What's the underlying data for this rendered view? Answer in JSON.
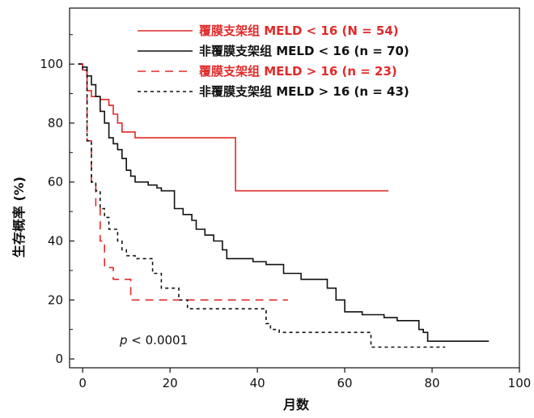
{
  "chart_data": {
    "type": "line",
    "title": "",
    "xlabel": "月数",
    "ylabel": "生存概率 (%)",
    "xlim": [
      -3,
      100
    ],
    "ylim": [
      -3,
      119
    ],
    "x_ticks": [
      "0",
      "20",
      "40",
      "60",
      "80",
      "100"
    ],
    "y_ticks": [
      "0",
      "20",
      "40",
      "60",
      "80",
      "100"
    ],
    "legend_position": "top",
    "annotation": {
      "italic": "p",
      "text": " < 0.0001"
    },
    "series": [
      {
        "name": "覆膜支架组 MELD < 16 (N = 54)",
        "color": "#e02a2a",
        "dash": "solid",
        "points": [
          [
            -1,
            100
          ],
          [
            0,
            100
          ],
          [
            0,
            98
          ],
          [
            1,
            98
          ],
          [
            1,
            91
          ],
          [
            2,
            91
          ],
          [
            2,
            89
          ],
          [
            4,
            89
          ],
          [
            4,
            88
          ],
          [
            6,
            88
          ],
          [
            6,
            86
          ],
          [
            7,
            86
          ],
          [
            7,
            83
          ],
          [
            8,
            83
          ],
          [
            8,
            80
          ],
          [
            9,
            80
          ],
          [
            9,
            77
          ],
          [
            10,
            77
          ],
          [
            10,
            77
          ],
          [
            12,
            77
          ],
          [
            12,
            75
          ],
          [
            35,
            75
          ],
          [
            35,
            57
          ],
          [
            70,
            57
          ]
        ]
      },
      {
        "name": "非覆膜支架组 MELD < 16 (n = 70)",
        "color": "#111111",
        "dash": "solid",
        "points": [
          [
            -1,
            100
          ],
          [
            0,
            100
          ],
          [
            0,
            99
          ],
          [
            1,
            99
          ],
          [
            1,
            96
          ],
          [
            2,
            96
          ],
          [
            2,
            93
          ],
          [
            3,
            93
          ],
          [
            3,
            89
          ],
          [
            4,
            89
          ],
          [
            4,
            84
          ],
          [
            5,
            84
          ],
          [
            5,
            80
          ],
          [
            6,
            80
          ],
          [
            6,
            75
          ],
          [
            7,
            75
          ],
          [
            7,
            73
          ],
          [
            8,
            73
          ],
          [
            8,
            71
          ],
          [
            9,
            71
          ],
          [
            9,
            68
          ],
          [
            10,
            68
          ],
          [
            10,
            64
          ],
          [
            11,
            64
          ],
          [
            11,
            62
          ],
          [
            12,
            62
          ],
          [
            12,
            60
          ],
          [
            15,
            60
          ],
          [
            15,
            59
          ],
          [
            17,
            59
          ],
          [
            17,
            58
          ],
          [
            18,
            58
          ],
          [
            18,
            57
          ],
          [
            21,
            57
          ],
          [
            21,
            51
          ],
          [
            23,
            51
          ],
          [
            23,
            49
          ],
          [
            25,
            49
          ],
          [
            25,
            47
          ],
          [
            26,
            47
          ],
          [
            26,
            44
          ],
          [
            28,
            44
          ],
          [
            28,
            42
          ],
          [
            30,
            42
          ],
          [
            30,
            40
          ],
          [
            32,
            40
          ],
          [
            32,
            37
          ],
          [
            33,
            37
          ],
          [
            33,
            34
          ],
          [
            39,
            34
          ],
          [
            39,
            33
          ],
          [
            42,
            33
          ],
          [
            42,
            32
          ],
          [
            46,
            32
          ],
          [
            46,
            29
          ],
          [
            50,
            29
          ],
          [
            50,
            27
          ],
          [
            56,
            27
          ],
          [
            56,
            24
          ],
          [
            58,
            24
          ],
          [
            58,
            20
          ],
          [
            60,
            20
          ],
          [
            60,
            16
          ],
          [
            64,
            16
          ],
          [
            64,
            15
          ],
          [
            69,
            15
          ],
          [
            69,
            14
          ],
          [
            72,
            14
          ],
          [
            72,
            13
          ],
          [
            77,
            13
          ],
          [
            77,
            10
          ],
          [
            78,
            10
          ],
          [
            78,
            9
          ],
          [
            79,
            9
          ],
          [
            79,
            6
          ],
          [
            93,
            6
          ]
        ]
      },
      {
        "name": "覆膜支架组 MELD > 16 (n = 23)",
        "color": "#e02a2a",
        "dash": "10,7",
        "points": [
          [
            -1,
            100
          ],
          [
            0,
            100
          ],
          [
            0,
            98
          ],
          [
            1,
            98
          ],
          [
            1,
            74
          ],
          [
            2,
            74
          ],
          [
            2,
            59
          ],
          [
            3,
            59
          ],
          [
            3,
            52
          ],
          [
            4,
            52
          ],
          [
            4,
            40
          ],
          [
            5,
            40
          ],
          [
            5,
            31
          ],
          [
            7,
            31
          ],
          [
            7,
            27
          ],
          [
            11,
            27
          ],
          [
            11,
            20
          ],
          [
            47,
            20
          ]
        ]
      },
      {
        "name": "非覆膜支架组 MELD > 16 (n = 43)",
        "color": "#111111",
        "dash": "4,4",
        "points": [
          [
            -1,
            100
          ],
          [
            0,
            100
          ],
          [
            0,
            98
          ],
          [
            1,
            98
          ],
          [
            1,
            74
          ],
          [
            2,
            74
          ],
          [
            2,
            60
          ],
          [
            3,
            60
          ],
          [
            3,
            57
          ],
          [
            4,
            57
          ],
          [
            4,
            51
          ],
          [
            5,
            51
          ],
          [
            5,
            48
          ],
          [
            6,
            48
          ],
          [
            6,
            44
          ],
          [
            8,
            44
          ],
          [
            8,
            40
          ],
          [
            9,
            40
          ],
          [
            9,
            37
          ],
          [
            10,
            37
          ],
          [
            10,
            35
          ],
          [
            12,
            35
          ],
          [
            12,
            34
          ],
          [
            16,
            34
          ],
          [
            16,
            29
          ],
          [
            18,
            29
          ],
          [
            18,
            24
          ],
          [
            22,
            24
          ],
          [
            22,
            20
          ],
          [
            24,
            20
          ],
          [
            24,
            17
          ],
          [
            42,
            17
          ],
          [
            42,
            12
          ],
          [
            43,
            12
          ],
          [
            43,
            10
          ],
          [
            45,
            10
          ],
          [
            45,
            9
          ],
          [
            66,
            9
          ],
          [
            66,
            4
          ],
          [
            83,
            4
          ]
        ]
      }
    ]
  }
}
